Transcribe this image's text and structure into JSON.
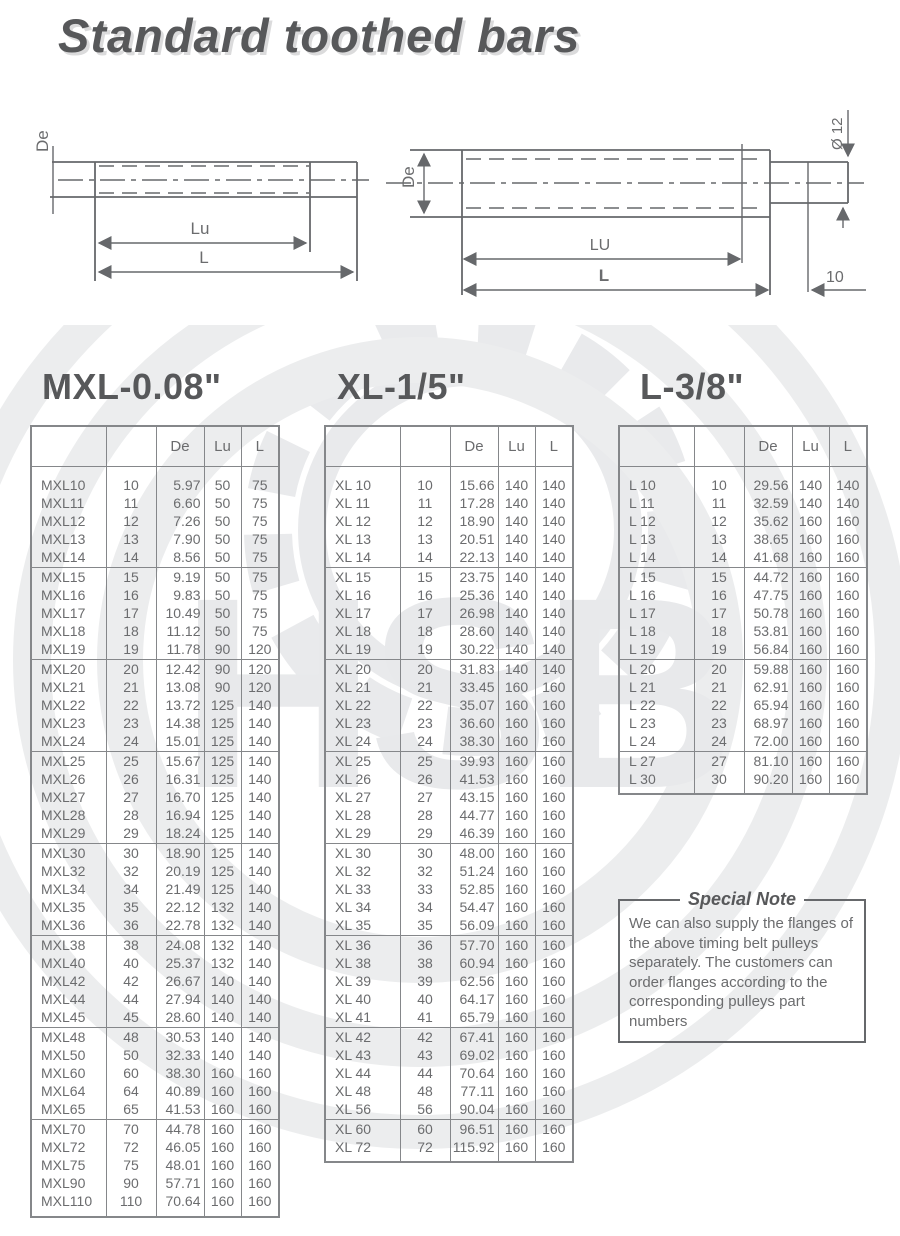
{
  "page": {
    "title": "Standard toothed bars"
  },
  "diagrams": {
    "left": {
      "de": "De",
      "lu": "Lu",
      "l": "L"
    },
    "right": {
      "de": "De",
      "lu": "LU",
      "l": "L",
      "diameter": "Ø 12",
      "stub_length": "10"
    }
  },
  "watermark": {
    "letters": "HSB"
  },
  "special_note": {
    "title": "Special Note",
    "body": "We can also supply the flanges of the above timing belt pulleys separately. The customers can order flanges according to the corresponding pulleys part numbers"
  },
  "colors": {
    "heading": "#57585a",
    "table_text": "#6b6c6e",
    "table_border": "#85878a",
    "drawing_line": "#66686b",
    "watermark": "#eaebec"
  },
  "tables": [
    {
      "id": "mxl",
      "title": "MXL-0.08\"",
      "headers": [
        "",
        "",
        "De",
        "Lu",
        "L"
      ],
      "groups": [
        [
          [
            "MXL10",
            "10",
            "5.97",
            "50",
            "75"
          ],
          [
            "MXL11",
            "11",
            "6.60",
            "50",
            "75"
          ],
          [
            "MXL12",
            "12",
            "7.26",
            "50",
            "75"
          ],
          [
            "MXL13",
            "13",
            "7.90",
            "50",
            "75"
          ],
          [
            "MXL14",
            "14",
            "8.56",
            "50",
            "75"
          ]
        ],
        [
          [
            "MXL15",
            "15",
            "9.19",
            "50",
            "75"
          ],
          [
            "MXL16",
            "16",
            "9.83",
            "50",
            "75"
          ],
          [
            "MXL17",
            "17",
            "10.49",
            "50",
            "75"
          ],
          [
            "MXL18",
            "18",
            "11.12",
            "50",
            "75"
          ],
          [
            "MXL19",
            "19",
            "11.78",
            "90",
            "120"
          ]
        ],
        [
          [
            "MXL20",
            "20",
            "12.42",
            "90",
            "120"
          ],
          [
            "MXL21",
            "21",
            "13.08",
            "90",
            "120"
          ],
          [
            "MXL22",
            "22",
            "13.72",
            "125",
            "140"
          ],
          [
            "MXL23",
            "23",
            "14.38",
            "125",
            "140"
          ],
          [
            "MXL24",
            "24",
            "15.01",
            "125",
            "140"
          ]
        ],
        [
          [
            "MXL25",
            "25",
            "15.67",
            "125",
            "140"
          ],
          [
            "MXL26",
            "26",
            "16.31",
            "125",
            "140"
          ],
          [
            "MXL27",
            "27",
            "16.70",
            "125",
            "140"
          ],
          [
            "MXL28",
            "28",
            "16.94",
            "125",
            "140"
          ],
          [
            "MXL29",
            "29",
            "18.24",
            "125",
            "140"
          ]
        ],
        [
          [
            "MXL30",
            "30",
            "18.90",
            "125",
            "140"
          ],
          [
            "MXL32",
            "32",
            "20.19",
            "125",
            "140"
          ],
          [
            "MXL34",
            "34",
            "21.49",
            "125",
            "140"
          ],
          [
            "MXL35",
            "35",
            "22.12",
            "132",
            "140"
          ],
          [
            "MXL36",
            "36",
            "22.78",
            "132",
            "140"
          ]
        ],
        [
          [
            "MXL38",
            "38",
            "24.08",
            "132",
            "140"
          ],
          [
            "MXL40",
            "40",
            "25.37",
            "132",
            "140"
          ],
          [
            "MXL42",
            "42",
            "26.67",
            "140",
            "140"
          ],
          [
            "MXL44",
            "44",
            "27.94",
            "140",
            "140"
          ],
          [
            "MXL45",
            "45",
            "28.60",
            "140",
            "140"
          ]
        ],
        [
          [
            "MXL48",
            "48",
            "30.53",
            "140",
            "140"
          ],
          [
            "MXL50",
            "50",
            "32.33",
            "140",
            "140"
          ],
          [
            "MXL60",
            "60",
            "38.30",
            "160",
            "160"
          ],
          [
            "MXL64",
            "64",
            "40.89",
            "160",
            "160"
          ],
          [
            "MXL65",
            "65",
            "41.53",
            "160",
            "160"
          ]
        ],
        [
          [
            "MXL70",
            "70",
            "44.78",
            "160",
            "160"
          ],
          [
            "MXL72",
            "72",
            "46.05",
            "160",
            "160"
          ],
          [
            "MXL75",
            "75",
            "48.01",
            "160",
            "160"
          ],
          [
            "MXL90",
            "90",
            "57.71",
            "160",
            "160"
          ],
          [
            "MXL110",
            "110",
            "70.64",
            "160",
            "160"
          ]
        ]
      ]
    },
    {
      "id": "xl",
      "title": "XL-1/5\"",
      "headers": [
        "",
        "",
        "De",
        "Lu",
        "L"
      ],
      "groups": [
        [
          [
            "XL 10",
            "10",
            "15.66",
            "140",
            "140"
          ],
          [
            "XL 11",
            "11",
            "17.28",
            "140",
            "140"
          ],
          [
            "XL 12",
            "12",
            "18.90",
            "140",
            "140"
          ],
          [
            "XL 13",
            "13",
            "20.51",
            "140",
            "140"
          ],
          [
            "XL 14",
            "14",
            "22.13",
            "140",
            "140"
          ]
        ],
        [
          [
            "XL 15",
            "15",
            "23.75",
            "140",
            "140"
          ],
          [
            "XL 16",
            "16",
            "25.36",
            "140",
            "140"
          ],
          [
            "XL 17",
            "17",
            "26.98",
            "140",
            "140"
          ],
          [
            "XL 18",
            "18",
            "28.60",
            "140",
            "140"
          ],
          [
            "XL 19",
            "19",
            "30.22",
            "140",
            "140"
          ]
        ],
        [
          [
            "XL 20",
            "20",
            "31.83",
            "140",
            "140"
          ],
          [
            "XL 21",
            "21",
            "33.45",
            "160",
            "160"
          ],
          [
            "XL 22",
            "22",
            "35.07",
            "160",
            "160"
          ],
          [
            "XL 23",
            "23",
            "36.60",
            "160",
            "160"
          ],
          [
            "XL 24",
            "24",
            "38.30",
            "160",
            "160"
          ]
        ],
        [
          [
            "XL 25",
            "25",
            "39.93",
            "160",
            "160"
          ],
          [
            "XL 26",
            "26",
            "41.53",
            "160",
            "160"
          ],
          [
            "XL 27",
            "27",
            "43.15",
            "160",
            "160"
          ],
          [
            "XL 28",
            "28",
            "44.77",
            "160",
            "160"
          ],
          [
            "XL 29",
            "29",
            "46.39",
            "160",
            "160"
          ]
        ],
        [
          [
            "XL 30",
            "30",
            "48.00",
            "160",
            "160"
          ],
          [
            "XL 32",
            "32",
            "51.24",
            "160",
            "160"
          ],
          [
            "XL 33",
            "33",
            "52.85",
            "160",
            "160"
          ],
          [
            "XL 34",
            "34",
            "54.47",
            "160",
            "160"
          ],
          [
            "XL 35",
            "35",
            "56.09",
            "160",
            "160"
          ]
        ],
        [
          [
            "XL 36",
            "36",
            "57.70",
            "160",
            "160"
          ],
          [
            "XL 38",
            "38",
            "60.94",
            "160",
            "160"
          ],
          [
            "XL 39",
            "39",
            "62.56",
            "160",
            "160"
          ],
          [
            "XL 40",
            "40",
            "64.17",
            "160",
            "160"
          ],
          [
            "XL 41",
            "41",
            "65.79",
            "160",
            "160"
          ]
        ],
        [
          [
            "XL 42",
            "42",
            "67.41",
            "160",
            "160"
          ],
          [
            "XL 43",
            "43",
            "69.02",
            "160",
            "160"
          ],
          [
            "XL 44",
            "44",
            "70.64",
            "160",
            "160"
          ],
          [
            "XL 48",
            "48",
            "77.11",
            "160",
            "160"
          ],
          [
            "XL 56",
            "56",
            "90.04",
            "160",
            "160"
          ]
        ],
        [
          [
            "XL 60",
            "60",
            "96.51",
            "160",
            "160"
          ],
          [
            "XL 72",
            "72",
            "115.92",
            "160",
            "160"
          ]
        ]
      ]
    },
    {
      "id": "l",
      "title": "L-3/8\"",
      "headers": [
        "",
        "",
        "De",
        "Lu",
        "L"
      ],
      "groups": [
        [
          [
            "L 10",
            "10",
            "29.56",
            "140",
            "140"
          ],
          [
            "L 11",
            "11",
            "32.59",
            "140",
            "140"
          ],
          [
            "L 12",
            "12",
            "35.62",
            "160",
            "160"
          ],
          [
            "L 13",
            "13",
            "38.65",
            "160",
            "160"
          ],
          [
            "L 14",
            "14",
            "41.68",
            "160",
            "160"
          ]
        ],
        [
          [
            "L 15",
            "15",
            "44.72",
            "160",
            "160"
          ],
          [
            "L 16",
            "16",
            "47.75",
            "160",
            "160"
          ],
          [
            "L 17",
            "17",
            "50.78",
            "160",
            "160"
          ],
          [
            "L 18",
            "18",
            "53.81",
            "160",
            "160"
          ],
          [
            "L 19",
            "19",
            "56.84",
            "160",
            "160"
          ]
        ],
        [
          [
            "L 20",
            "20",
            "59.88",
            "160",
            "160"
          ],
          [
            "L 21",
            "21",
            "62.91",
            "160",
            "160"
          ],
          [
            "L 22",
            "22",
            "65.94",
            "160",
            "160"
          ],
          [
            "L 23",
            "23",
            "68.97",
            "160",
            "160"
          ],
          [
            "L 24",
            "24",
            "72.00",
            "160",
            "160"
          ]
        ],
        [
          [
            "L 27",
            "27",
            "81.10",
            "160",
            "160"
          ],
          [
            "L 30",
            "30",
            "90.20",
            "160",
            "160"
          ]
        ]
      ]
    }
  ]
}
